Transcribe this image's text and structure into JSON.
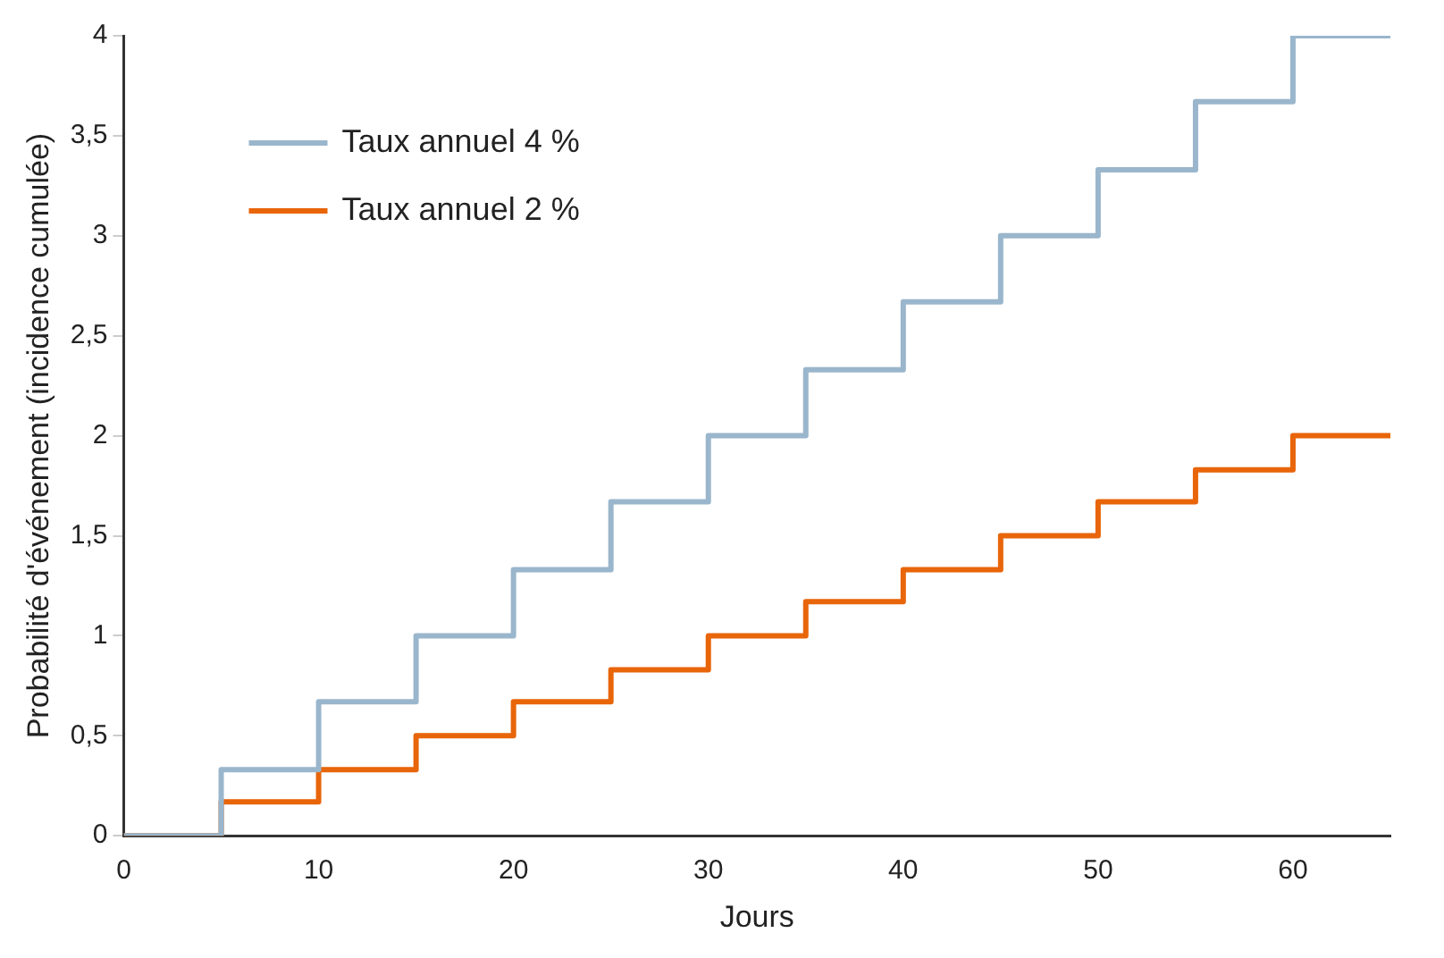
{
  "chart_data": {
    "type": "step",
    "xlabel": "Jours",
    "ylabel": "Probabilité d'événement (incidence cumulée)",
    "x": [
      0,
      5,
      10,
      15,
      20,
      25,
      30,
      35,
      40,
      45,
      50,
      55,
      60,
      65
    ],
    "series": [
      {
        "name": "Taux annuel 4 %",
        "color": "#9ab6cc",
        "values": [
          0,
          0.33,
          0.67,
          1,
          1.33,
          1.67,
          2,
          2.33,
          2.67,
          3,
          3.33,
          3.67,
          4,
          4
        ]
      },
      {
        "name": "Taux annuel 2 %",
        "color": "#e8650a",
        "values": [
          0,
          0.17,
          0.33,
          0.5,
          0.67,
          0.83,
          1,
          1.17,
          1.33,
          1.5,
          1.67,
          1.83,
          2,
          2
        ]
      }
    ],
    "xlim": [
      0,
      65
    ],
    "xticks": [
      0,
      10,
      20,
      30,
      40,
      50,
      60
    ],
    "ylim": [
      0,
      4
    ],
    "yticks": [
      0,
      {
        "value": 0.5,
        "label": "0,5"
      },
      1,
      {
        "value": 1.5,
        "label": "1,5"
      },
      2,
      {
        "value": 2.5,
        "label": "2,5"
      },
      3,
      {
        "value": 3.5,
        "label": "3,5"
      },
      4
    ],
    "grid": false,
    "legend": "top left",
    "marker": "none",
    "line_style": "solid"
  }
}
